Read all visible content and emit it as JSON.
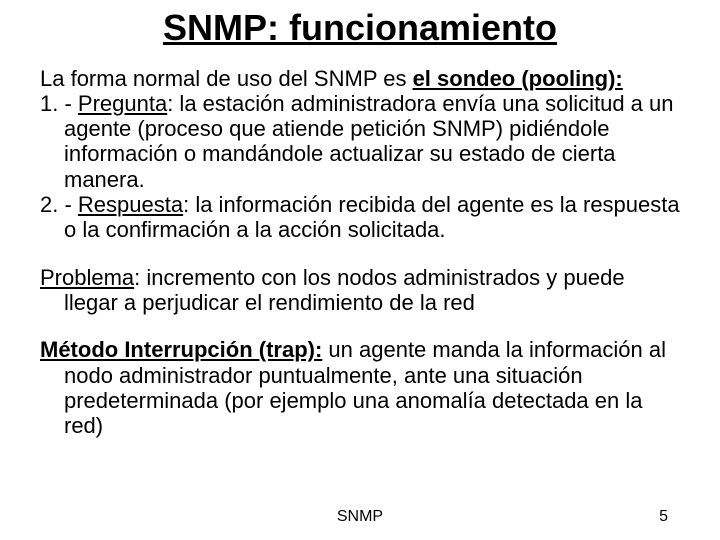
{
  "title": "SNMP: funcionamiento",
  "intro_pre": "La forma normal de uso del SNMP es ",
  "intro_emph": "el sondeo (pooling):",
  "item1_num": "1. - ",
  "item1_label": "Pregunta",
  "item1_rest": ": la estación administradora envía una solicitud a un agente (proceso que atiende petición SNMP) pidiéndole información  o mandándole actualizar su estado de cierta manera.",
  "item2_num": "2. - ",
  "item2_label": "Respuesta",
  "item2_rest": ": la información recibida del agente es la respuesta o la confirmación a la acción solicitada.",
  "problema_label": "Problema",
  "problema_rest": ": incremento con los nodos administrados y puede llegar a perjudicar el rendimiento de la red",
  "metodo_label": "Método Interrupción (trap):",
  "metodo_rest": " un agente manda la información al nodo administrador puntualmente, ante una situación predeterminada (por ejemplo una anomalía detectada en la red)",
  "footer_label": "SNMP",
  "footer_page": "5"
}
